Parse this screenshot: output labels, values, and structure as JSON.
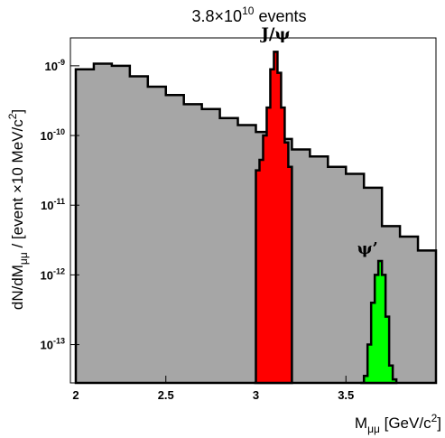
{
  "chart_data": {
    "type": "area",
    "title": {
      "base": "3.8×10",
      "sup": "10",
      "rest": " events"
    },
    "xlabel": {
      "main": "M",
      "sub": "μμ",
      "pre": " [GeV/c",
      "sup": "2",
      "post": "]"
    },
    "ylabel": {
      "main": "dN/dM",
      "sub": "μμ",
      "mid": " / [event ×10 MeV/c",
      "sup": "2",
      "post": "]"
    },
    "xlim": [
      1.97,
      4.0
    ],
    "ylim_log10": [
      -13.55,
      -8.6
    ],
    "log_y": true,
    "grid": false,
    "x_ticks": [
      "2",
      "2.5",
      "3",
      "3.5"
    ],
    "y_ticks": [
      {
        "base": "10",
        "exp": "-9"
      },
      {
        "base": "10",
        "exp": "-10"
      },
      {
        "base": "10",
        "exp": "-11"
      },
      {
        "base": "10",
        "exp": "-12"
      },
      {
        "base": "10",
        "exp": "-13"
      }
    ],
    "annotations": [
      {
        "text": "J/ψ",
        "x": 3.11
      },
      {
        "text": "ψ’",
        "x": 3.62
      }
    ],
    "series": [
      {
        "role": "background",
        "color": "#a6a6a6",
        "x": [
          2.0,
          2.1,
          2.2,
          2.3,
          2.4,
          2.5,
          2.6,
          2.7,
          2.8,
          2.9,
          3.0,
          3.1,
          3.2,
          3.3,
          3.4,
          3.5,
          3.6,
          3.7,
          3.8,
          3.9,
          4.0
        ],
        "log10": [
          -9.05,
          -8.97,
          -9.0,
          -9.15,
          -9.3,
          -9.42,
          -9.55,
          -9.62,
          -9.75,
          -9.85,
          -9.95,
          -10.05,
          -10.2,
          -10.3,
          -10.45,
          -10.55,
          -10.75,
          -11.3,
          -11.45,
          -11.65,
          -11.8
        ]
      },
      {
        "role": "signal",
        "name": "J/ψ",
        "color": "#ff0000",
        "x": [
          2.99,
          3.0,
          3.02,
          3.04,
          3.06,
          3.08,
          3.1,
          3.12,
          3.14,
          3.16,
          3.18,
          3.2
        ],
        "log10": [
          -13.55,
          -10.5,
          -10.35,
          -10.0,
          -9.6,
          -9.05,
          -8.8,
          -9.1,
          -9.6,
          -10.1,
          -10.45,
          -13.55
        ]
      },
      {
        "role": "signal",
        "name": "ψ’",
        "color": "#00ff00",
        "x": [
          3.58,
          3.6,
          3.62,
          3.64,
          3.66,
          3.68,
          3.7,
          3.72,
          3.74,
          3.76,
          3.78
        ],
        "log10": [
          -13.55,
          -13.45,
          -13.0,
          -12.4,
          -12.0,
          -11.8,
          -12.0,
          -12.6,
          -13.3,
          -13.5,
          -13.55
        ]
      }
    ]
  }
}
